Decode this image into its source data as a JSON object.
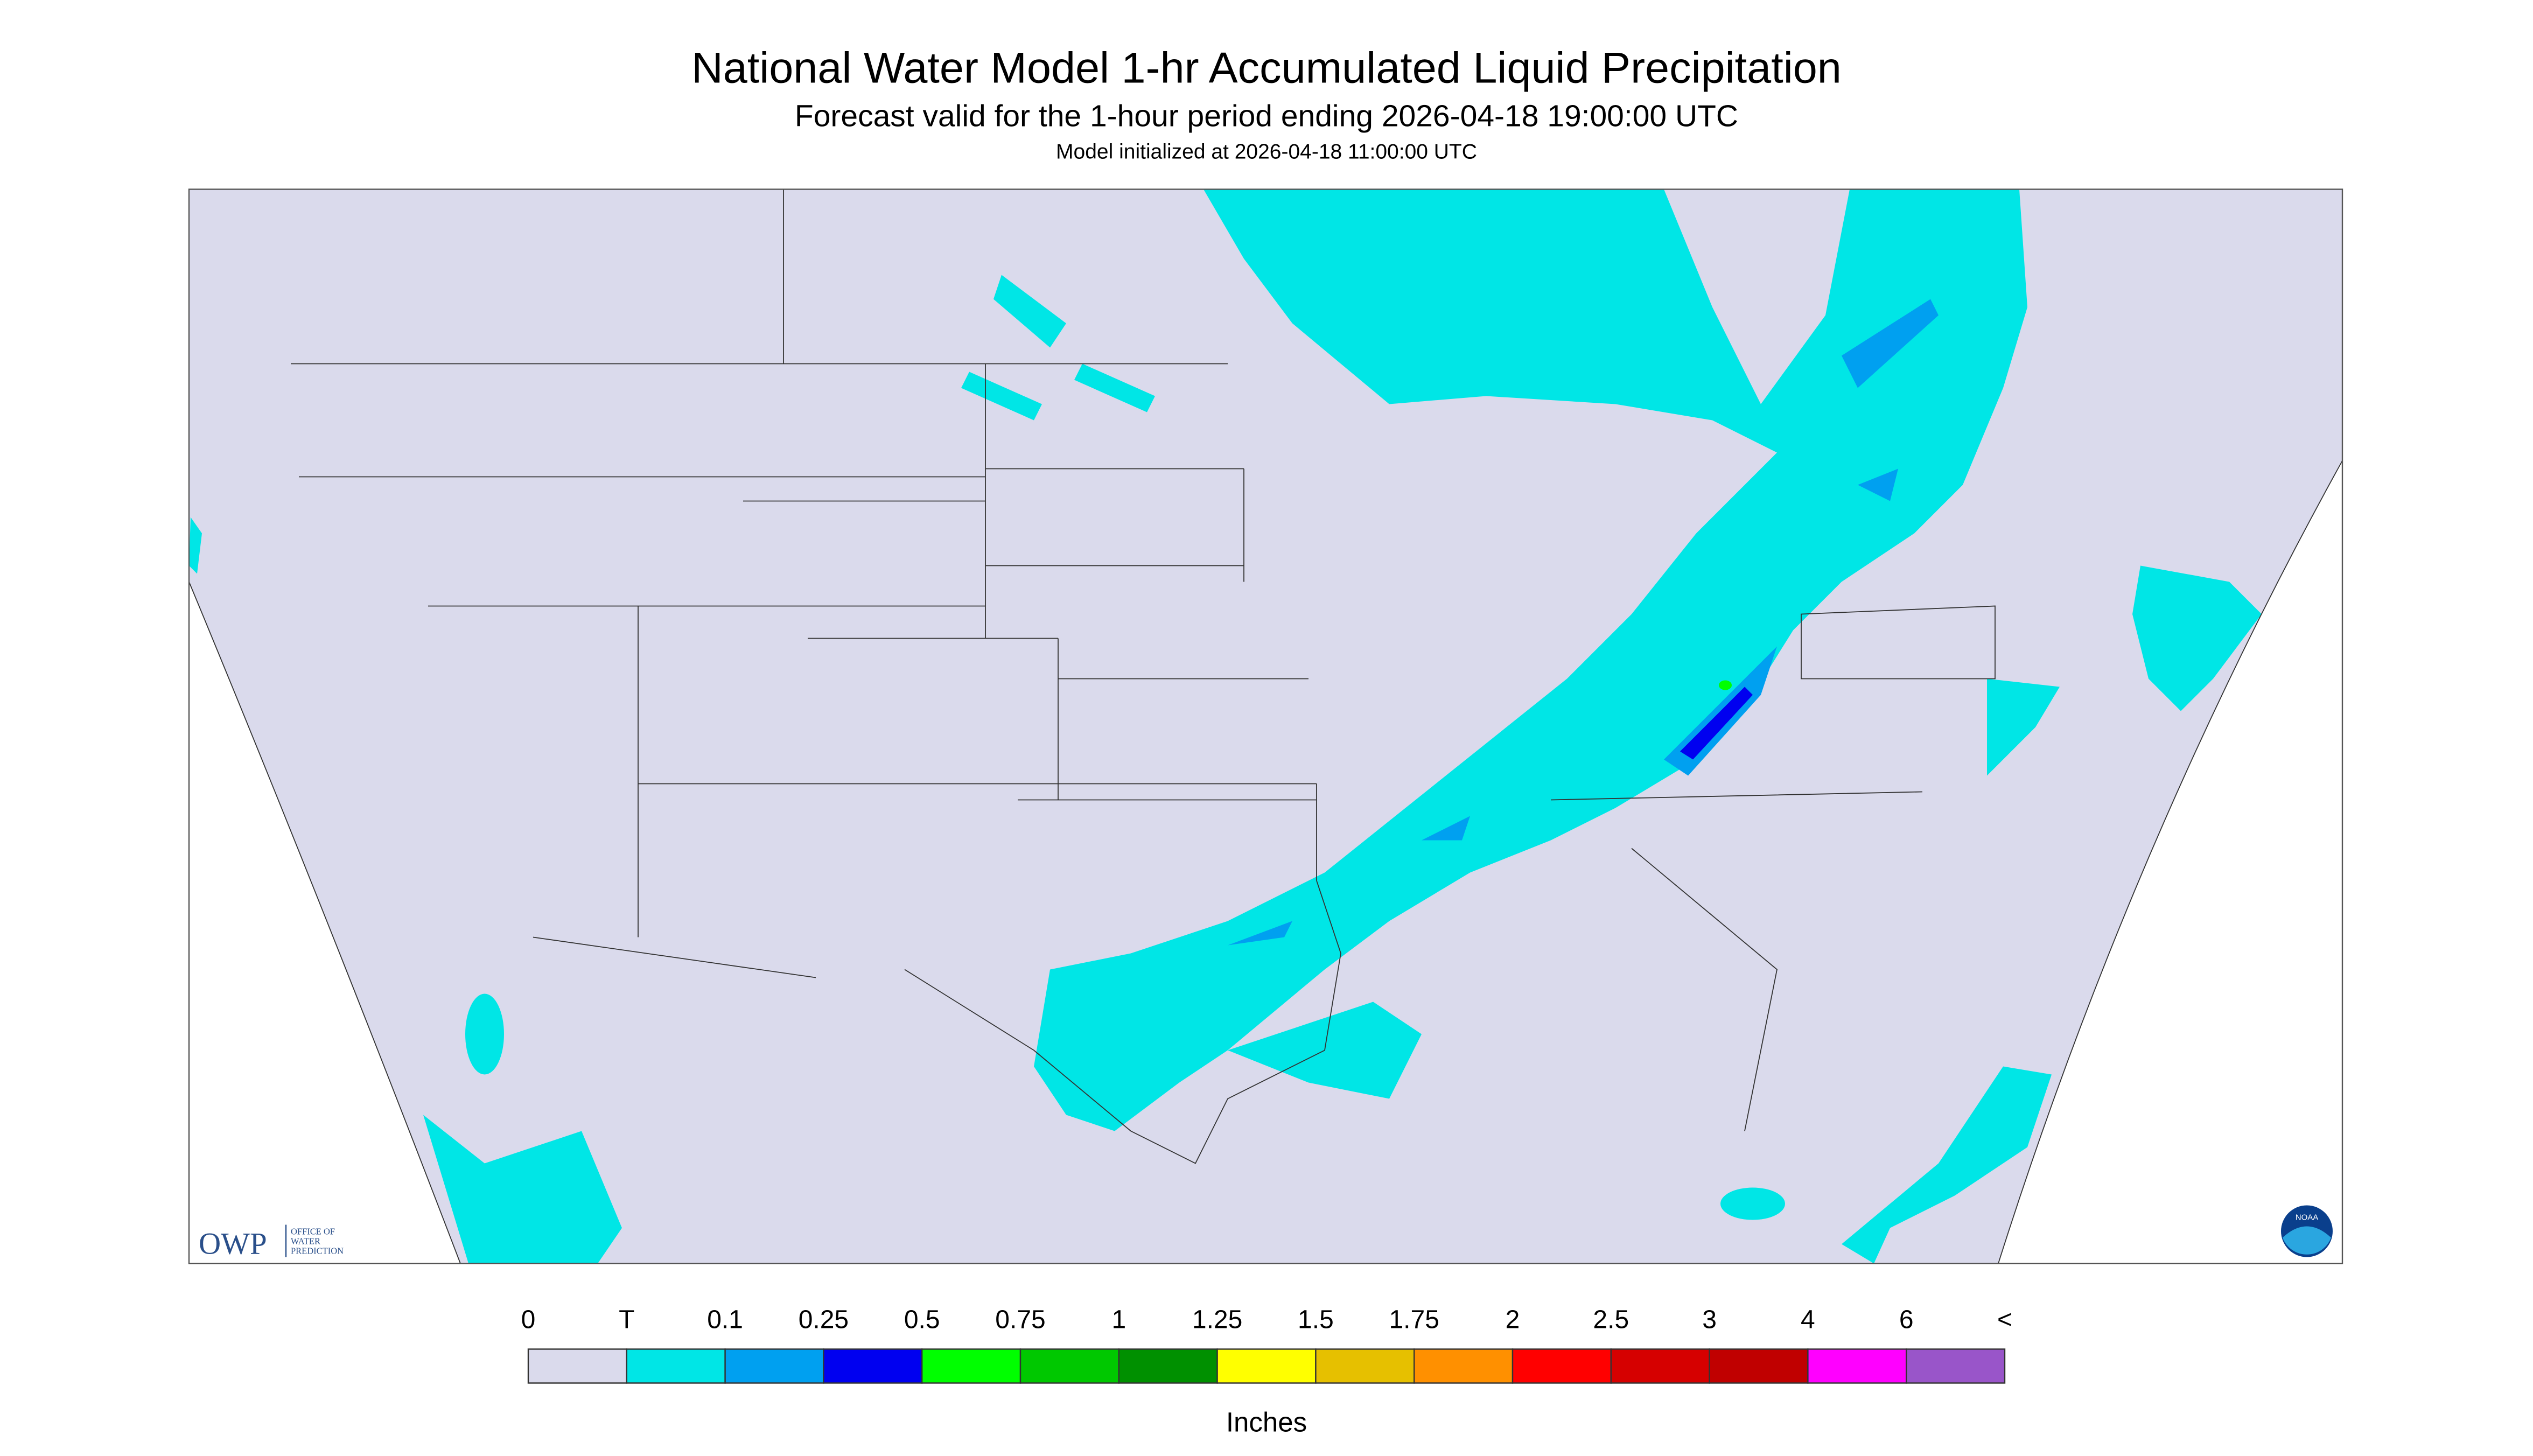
{
  "header": {
    "title": "National Water Model 1-hr Accumulated Liquid Precipitation",
    "subtitle": "Forecast valid for the 1-hour period ending 2026-04-18 19:00:00 UTC",
    "init_text": "Model initialized at 2026-04-18 11:00:00 UTC"
  },
  "legend": {
    "labels": [
      "0",
      "T",
      "0.1",
      "0.25",
      "0.5",
      "0.75",
      "1",
      "1.25",
      "1.5",
      "1.75",
      "2",
      "2.5",
      "3",
      "4",
      "6",
      "<"
    ],
    "colors": [
      "#dadaec",
      "#00e6e6",
      "#00a0f0",
      "#0000f0",
      "#00ff00",
      "#00c800",
      "#009000",
      "#ffff00",
      "#e6c000",
      "#ff9000",
      "#ff0000",
      "#d60000",
      "#c00000",
      "#ff00ff",
      "#9955c9"
    ],
    "unit": "Inches"
  },
  "logo": {
    "owp": "OWP",
    "owp_line1": "OFFICE OF",
    "owp_line2": "WATER",
    "owp_line3": "PREDICTION",
    "noaa": "NOAA"
  }
}
